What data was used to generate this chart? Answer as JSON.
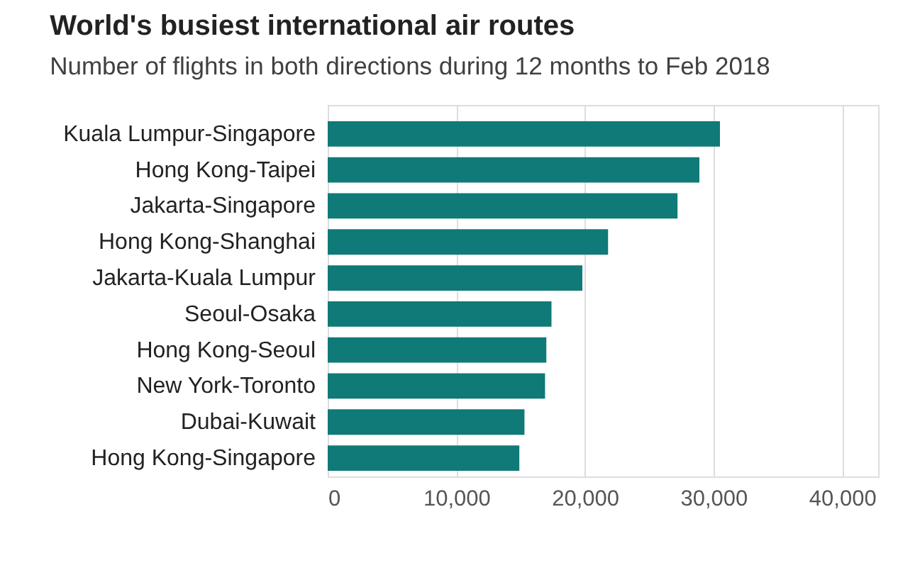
{
  "chart_data": {
    "type": "bar",
    "orientation": "horizontal",
    "title": "World's busiest international air routes",
    "subtitle": "Number of flights in both directions during 12 months to Feb 2018",
    "categories": [
      "Kuala Lumpur-Singapore",
      "Hong Kong-Taipei",
      "Jakarta-Singapore",
      "Hong Kong-Shanghai",
      "Jakarta-Kuala Lumpur",
      "Seoul-Osaka",
      "Hong Kong-Seoul",
      "New York-Toronto",
      "Dubai-Kuwait",
      "Hong Kong-Singapore"
    ],
    "values": [
      30500,
      28900,
      27200,
      21800,
      19800,
      17400,
      17000,
      16900,
      15300,
      14900
    ],
    "color": "#0f7a77",
    "xlim": [
      0,
      42800
    ],
    "xticks": [
      0,
      {
        "value": 10000,
        "label": "10,000"
      },
      {
        "value": 20000,
        "label": "20,000"
      },
      {
        "value": 30000,
        "label": "30,000"
      },
      {
        "value": 40000,
        "label": "40,000"
      }
    ],
    "grid": "x"
  }
}
